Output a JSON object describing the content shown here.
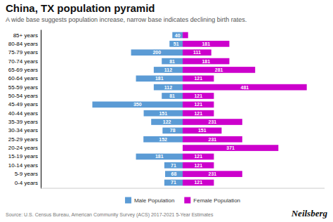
{
  "chart_data": {
    "type": "bar",
    "orientation": "horizontal",
    "title": "China, TX population pyramid",
    "subtitle": "A wide base suggests population increase, narrow base indicates declining birth rates.",
    "annotations": [
      "Source: U.S. Census Bureau, American Community Survey (ACS) 2017-2021 5-Year Estimates",
      "Neilsberg"
    ],
    "categories": [
      "0-4 years",
      "5-9 years",
      "10-14 years",
      "15-19 years",
      "20-24 years",
      "25-29 years",
      "30-34 years",
      "35-39 years",
      "40-44 years",
      "45-49 years",
      "50-54 years",
      "55-59 years",
      "60-64 years",
      "65-69 years",
      "70-74 years",
      "75-79 years",
      "80-84 years",
      "85+ years"
    ],
    "series": [
      {
        "name": "Male Population",
        "color": "#5b9bd5",
        "values": [
          71,
          68,
          71,
          181,
          0,
          152,
          78,
          122,
          151,
          350,
          81,
          112,
          181,
          112,
          81,
          200,
          51,
          40
        ],
        "value_labels": [
          "71",
          "68",
          "71",
          "181",
          null,
          "152",
          "78",
          "122",
          "151",
          "350",
          "81",
          "112",
          "181",
          "112",
          "81",
          "200",
          "51",
          "40"
        ]
      },
      {
        "name": "Female Population",
        "color": "#cc00cc",
        "values": [
          121,
          231,
          121,
          121,
          371,
          231,
          151,
          231,
          121,
          121,
          121,
          481,
          121,
          281,
          181,
          111,
          181,
          21
        ],
        "value_labels": [
          "121",
          "231",
          "121",
          "121",
          "371",
          "231",
          "151",
          "231",
          "121",
          "121",
          "121",
          "481",
          "121",
          "281",
          "181",
          "111",
          "181",
          null
        ]
      }
    ],
    "xlim": [
      -550,
      550
    ],
    "tick_labels": "y",
    "data_labels": true,
    "grid": false,
    "legend": "bottom"
  }
}
